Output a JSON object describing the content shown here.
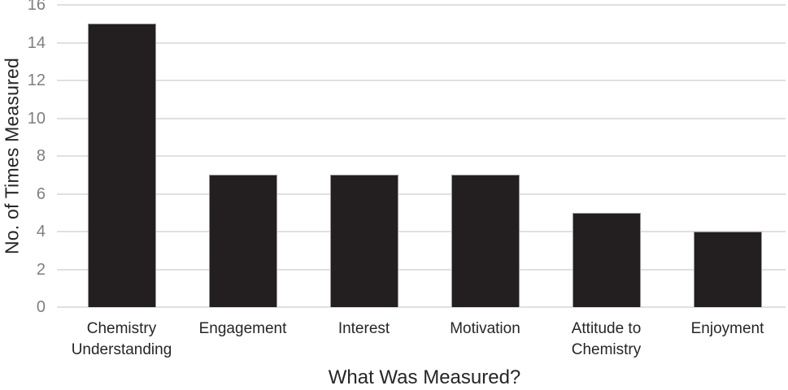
{
  "chart_data": {
    "type": "bar",
    "categories": [
      "Chemistry\nUnderstanding",
      "Engagement",
      "Interest",
      "Motivation",
      "Attitude to\nChemistry",
      "Enjoyment"
    ],
    "values": [
      15,
      7,
      7,
      7,
      5,
      4
    ],
    "title": "",
    "xlabel": "What Was Measured?",
    "ylabel": "No. of Times Measured",
    "ylim": [
      0,
      16
    ],
    "yticks": [
      0,
      2,
      4,
      6,
      8,
      10,
      12,
      14,
      16
    ],
    "grid": true,
    "legend_position": "none",
    "colors": {
      "bar_fill": "#231f20",
      "bar_border": "#97979a",
      "gridline": "#e0e0e0",
      "tick_label": "#7f7f7f",
      "axis_label": "#262626"
    }
  }
}
